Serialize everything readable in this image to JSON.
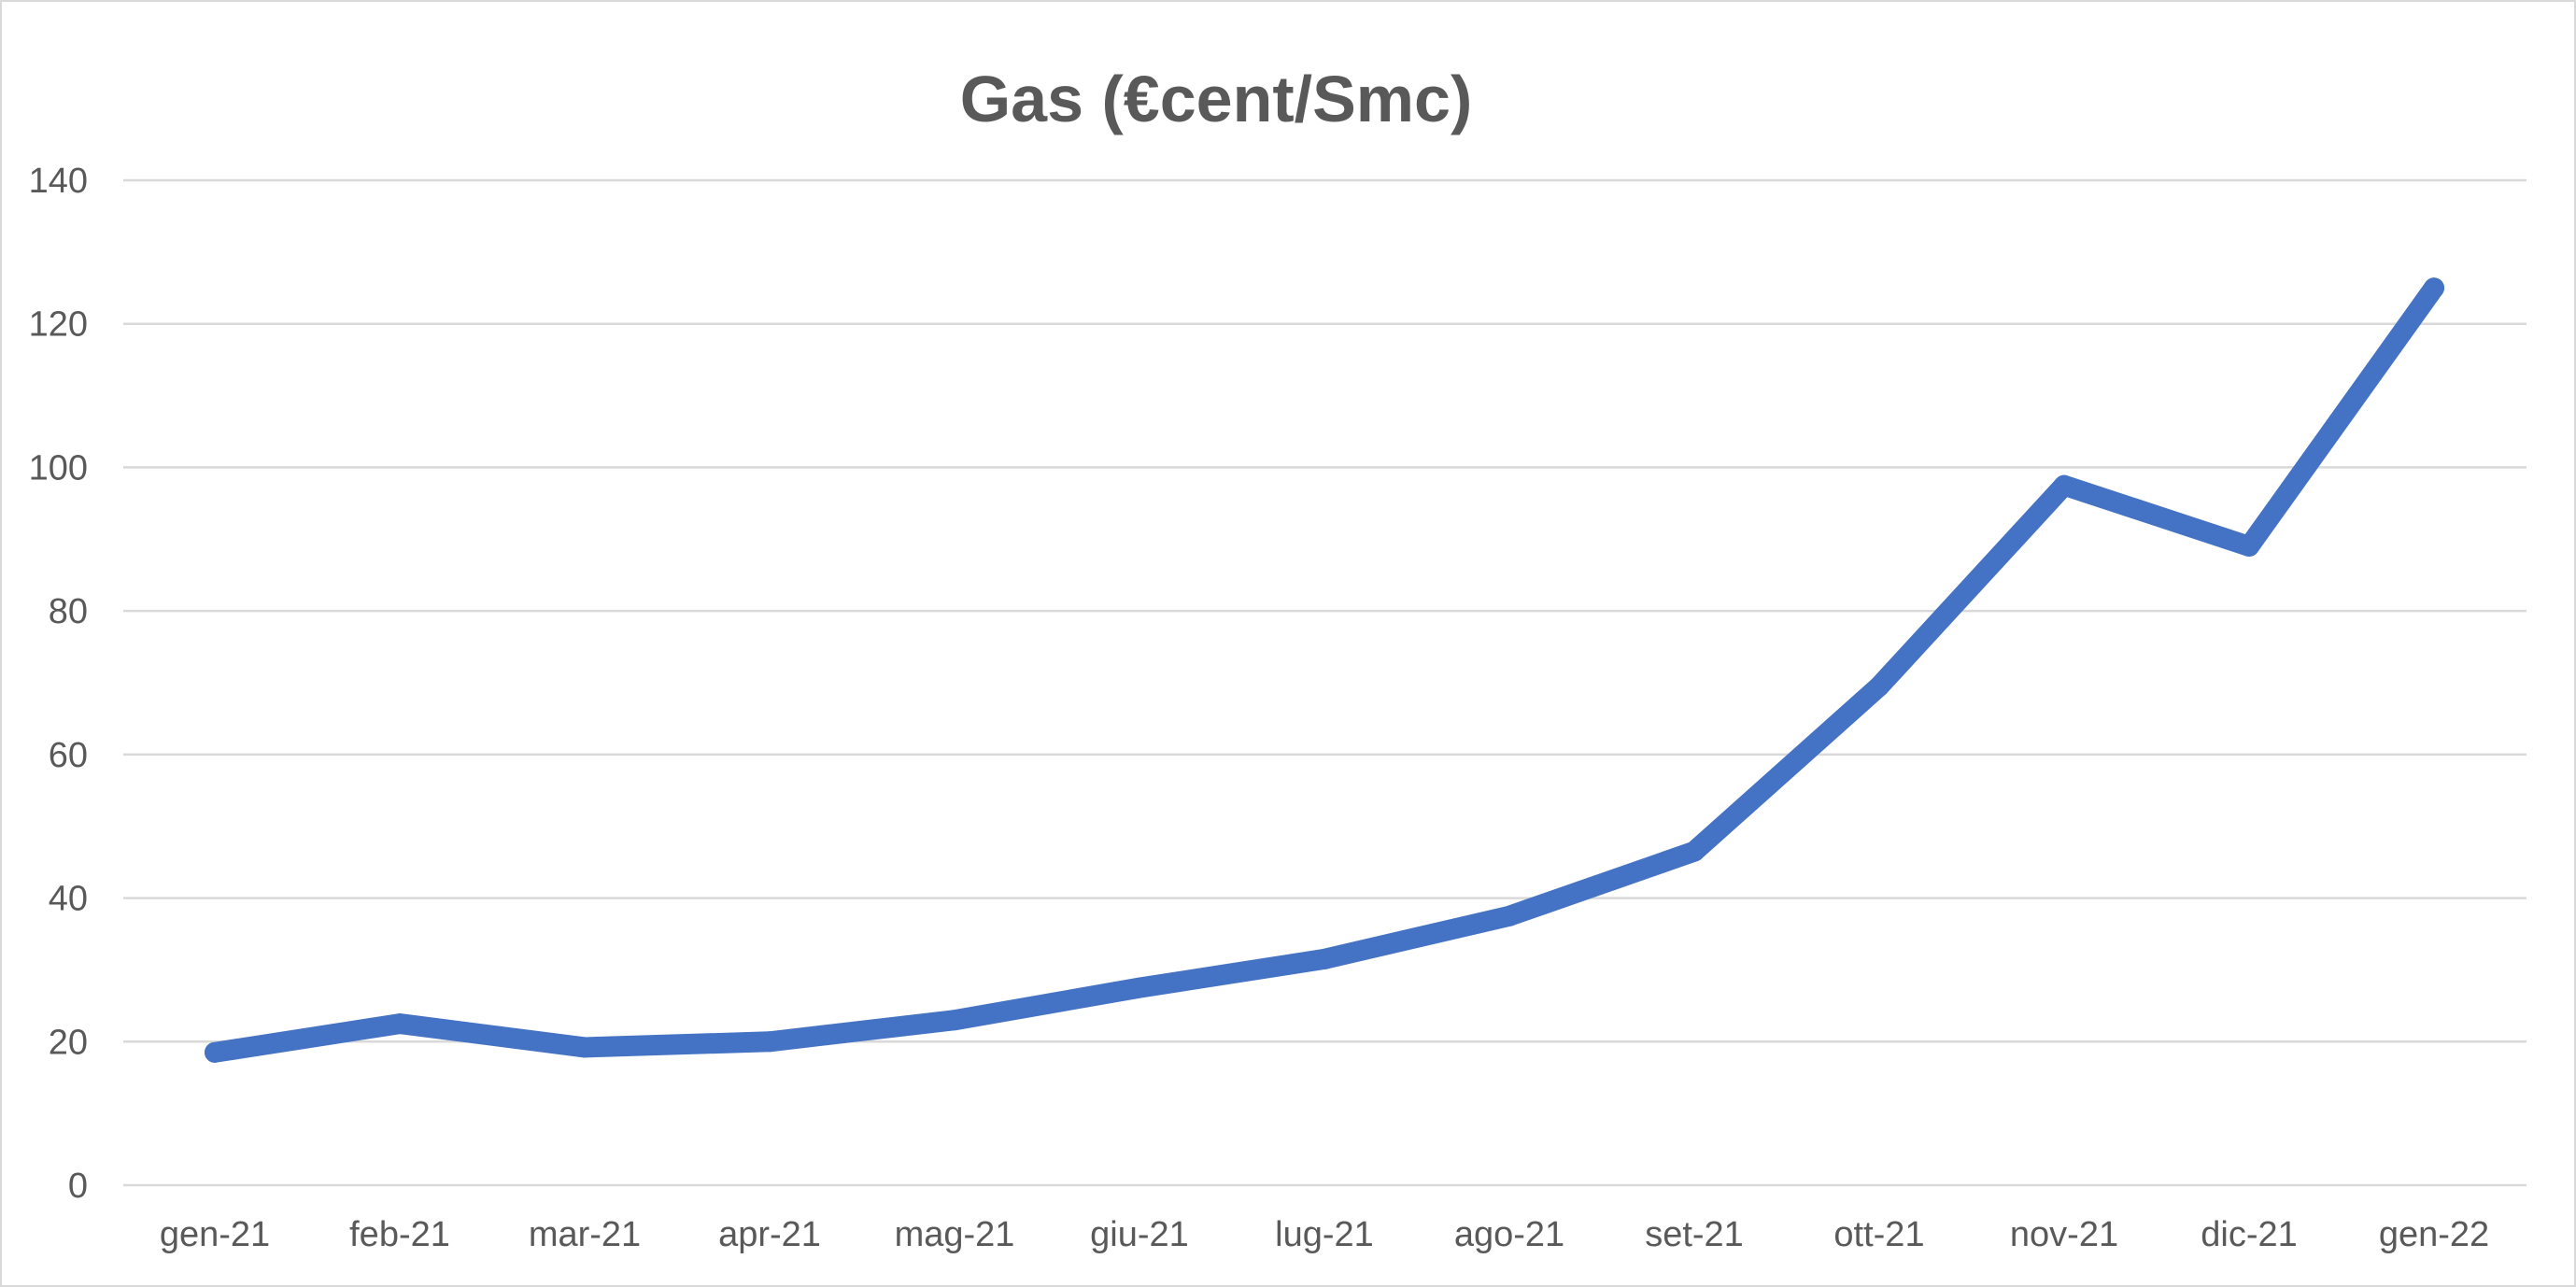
{
  "chart_data": {
    "type": "line",
    "title": "Gas (€cent/Smc)",
    "xlabel": "",
    "ylabel": "",
    "categories": [
      "gen-21",
      "feb-21",
      "mar-21",
      "apr-21",
      "mag-21",
      "giu-21",
      "lug-21",
      "ago-21",
      "set-21",
      "ott-21",
      "nov-21",
      "dic-21",
      "gen-22"
    ],
    "series": [
      {
        "values": [
          18.5,
          22.5,
          19.2,
          20.0,
          23.0,
          27.5,
          31.5,
          37.5,
          46.5,
          69.5,
          97.5,
          89.0,
          125.0
        ]
      }
    ],
    "yticks": [
      0,
      20,
      40,
      60,
      80,
      100,
      120,
      140
    ],
    "ylim": [
      0,
      140
    ],
    "grid": true,
    "legend": "none",
    "colors": {
      "series": "#4472c4",
      "grid": "#d9d9d9",
      "text": "#595959"
    }
  }
}
